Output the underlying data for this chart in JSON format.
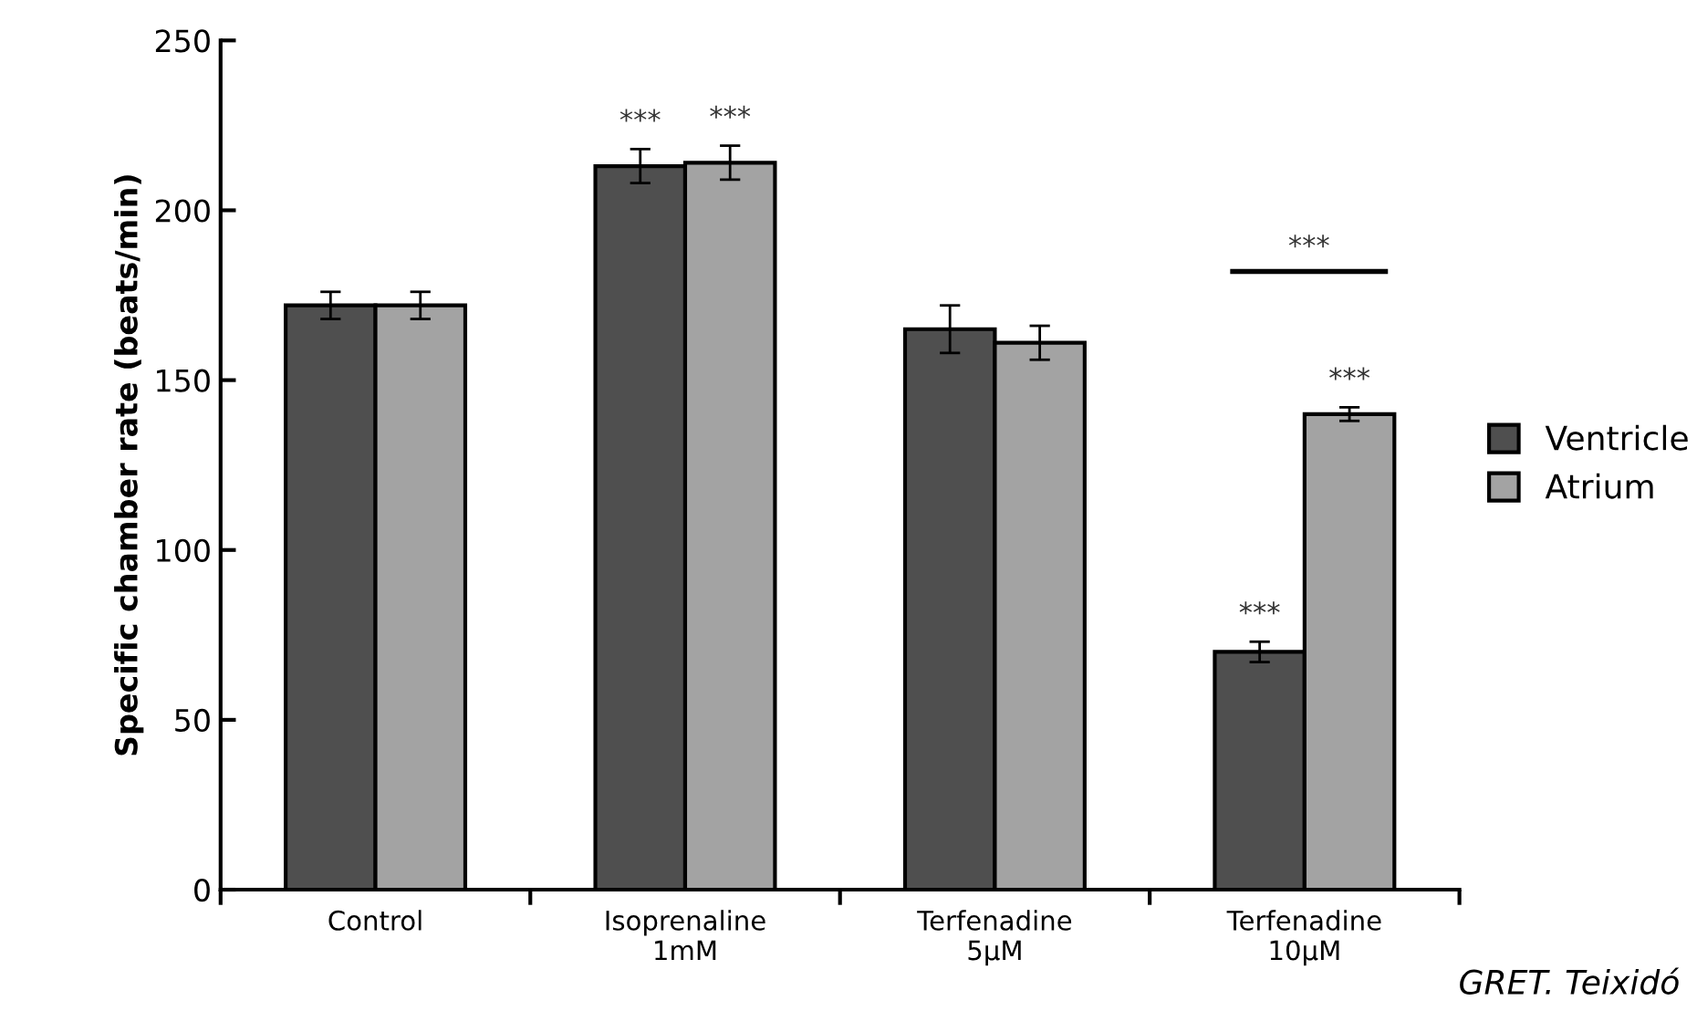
{
  "chart_data": {
    "type": "bar",
    "ylabel": "Specific chamber rate (beats/min)",
    "categories": [
      "Control",
      "Isoprenaline\n1mM",
      "Terfenadine\n5μM",
      "Terfenadine\n10μM"
    ],
    "series": [
      {
        "name": "Ventricle",
        "color": "#4f4f4f",
        "values": [
          172,
          213,
          165,
          70
        ],
        "errors": [
          4,
          5,
          7,
          3
        ],
        "value_labels": [
          null,
          "***",
          null,
          "***"
        ]
      },
      {
        "name": "Atrium",
        "color": "#a3a3a3",
        "values": [
          172,
          214,
          161,
          140
        ],
        "errors": [
          4,
          5,
          5,
          2
        ],
        "value_labels": [
          null,
          "***",
          null,
          "***"
        ]
      }
    ],
    "ylim": [
      0,
      250
    ],
    "yticks": [
      0,
      50,
      100,
      150,
      200,
      250
    ],
    "grid": false,
    "legend": "right",
    "annotations": [
      "***",
      "GRET. Teixidó"
    ]
  }
}
